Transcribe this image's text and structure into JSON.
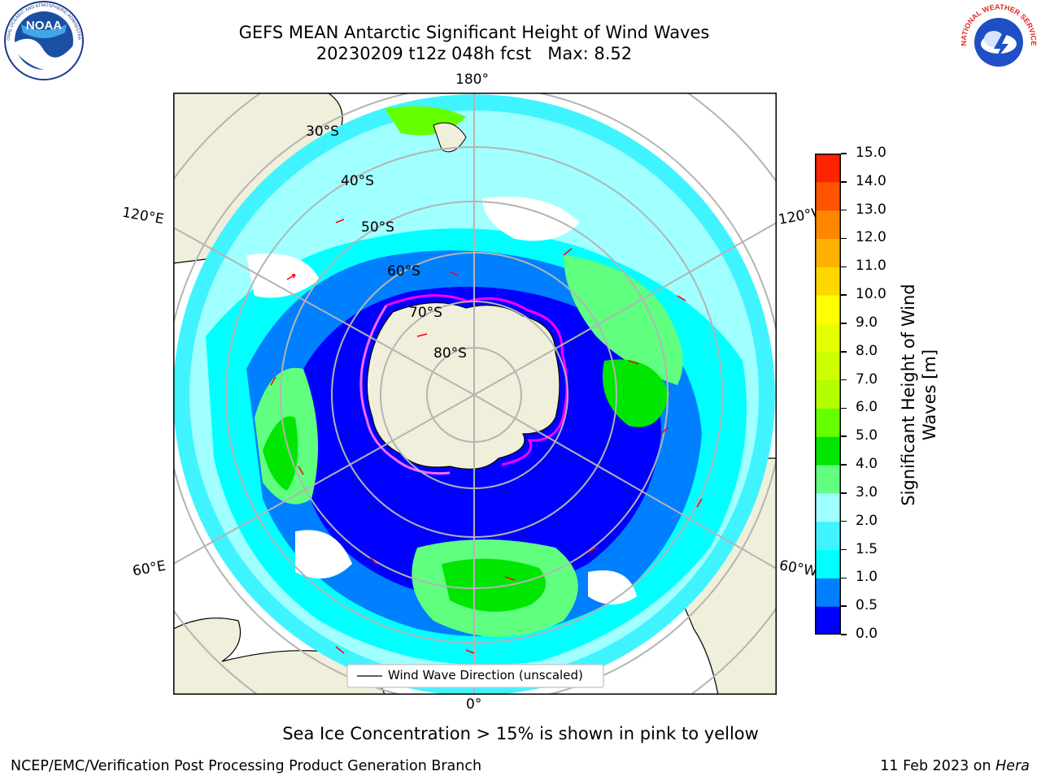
{
  "header": {
    "title_line1": "GEFS MEAN Antarctic Significant Height of Wind Waves",
    "title_line2": "20230209 t12z 048h fcst   Max: 8.52",
    "noaa_logo_text": "NOAA",
    "noaa_logo_ring_top": "NATIONAL OCEANIC AND ATMOSPHERIC ADMINISTRATION",
    "noaa_logo_ring_bottom": "U.S. DEPARTMENT OF COMMERCE",
    "nws_logo_ring": "NATIONAL WEATHER SERVICE"
  },
  "map": {
    "longitude_labels": {
      "top": "180°",
      "bottom": "0°",
      "upper_left": "120°E",
      "lower_left": "60°E",
      "upper_right": "120°W",
      "lower_right": "60°W"
    },
    "latitude_labels": [
      "30°S",
      "40°S",
      "50°S",
      "60°S",
      "70°S",
      "80°S"
    ],
    "legend_label": "Wind Wave Direction (unscaled)"
  },
  "colorbar": {
    "title": "Significant Height of Wind Waves [m]",
    "title_line1": "Significant Height of Wind",
    "title_line2": "Waves [m]",
    "ticks": [
      "0.0",
      "0.5",
      "1.0",
      "1.5",
      "2.0",
      "3.0",
      "4.0",
      "5.0",
      "6.0",
      "7.0",
      "8.0",
      "9.0",
      "10.0",
      "11.0",
      "12.0",
      "13.0",
      "14.0",
      "15.0"
    ],
    "colors": [
      "#0000ff",
      "#0080ff",
      "#00ffff",
      "#40f4ff",
      "#a0ffff",
      "#60ff80",
      "#00e600",
      "#66ff00",
      "#b3ff00",
      "#ccff00",
      "#e6ff00",
      "#ffff00",
      "#ffd700",
      "#ffb000",
      "#ff8800",
      "#ff5500",
      "#ff2200",
      "#ff0000"
    ]
  },
  "footer": {
    "sea_ice_note": "Sea Ice Concentration > 15% is shown in pink to yellow",
    "credit": "NCEP/EMC/Verification Post Processing Product Generation Branch",
    "date": "11 Feb 2023 on ",
    "system": "Hera"
  }
}
